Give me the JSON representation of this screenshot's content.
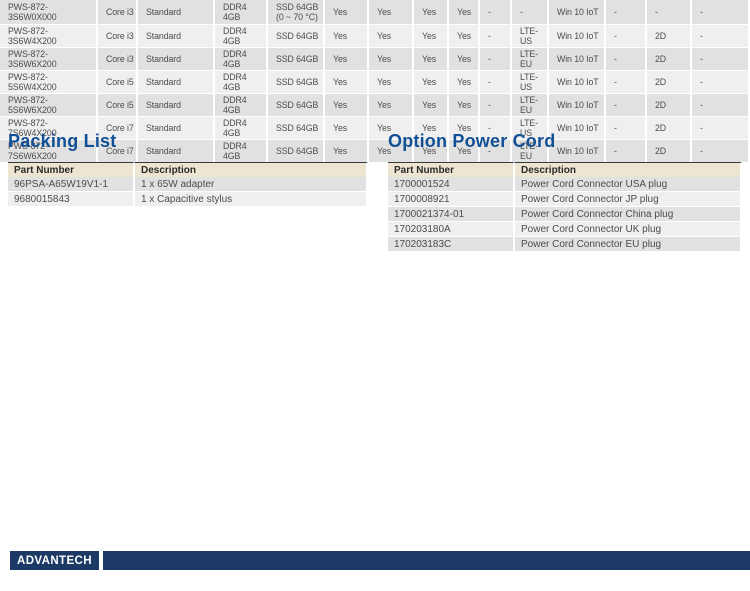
{
  "colors": {
    "accent_blue": "#114f96",
    "navy": "#1d3a67",
    "header_beige": "#ede4d2",
    "row_dark": "#e1e1e1",
    "row_light": "#efefef"
  },
  "spec_table": {
    "rows": [
      [
        "PWS-872-3S6W0X000",
        "Core i3",
        "Standard",
        "DDR4 4GB",
        "SSD 64GB\n(0 ~ 70 °C)",
        "Yes",
        "Yes",
        "Yes",
        "Yes",
        "-",
        "-",
        "Win 10 IoT",
        "-",
        "-",
        "-"
      ],
      [
        "PWS-872-3S6W4X200",
        "Core i3",
        "Standard",
        "DDR4 4GB",
        "SSD 64GB",
        "Yes",
        "Yes",
        "Yes",
        "Yes",
        "-",
        "LTE-US",
        "Win 10 IoT",
        "-",
        "2D",
        "-"
      ],
      [
        "PWS-872-3S6W6X200",
        "Core i3",
        "Standard",
        "DDR4 4GB",
        "SSD 64GB",
        "Yes",
        "Yes",
        "Yes",
        "Yes",
        "-",
        "LTE-EU",
        "Win 10 IoT",
        "-",
        "2D",
        "-"
      ],
      [
        "PWS-872-5S6W4X200",
        "Core i5",
        "Standard",
        "DDR4 4GB",
        "SSD 64GB",
        "Yes",
        "Yes",
        "Yes",
        "Yes",
        "-",
        "LTE-US",
        "Win 10 IoT",
        "-",
        "2D",
        "-"
      ],
      [
        "PWS-872-5S6W6X200",
        "Core i5",
        "Standard",
        "DDR4 4GB",
        "SSD 64GB",
        "Yes",
        "Yes",
        "Yes",
        "Yes",
        "-",
        "LTE-EU",
        "Win 10 IoT",
        "-",
        "2D",
        "-"
      ],
      [
        "PWS-872-7S6W4X200",
        "Core i7",
        "Standard",
        "DDR4 4GB",
        "SSD 64GB",
        "Yes",
        "Yes",
        "Yes",
        "Yes",
        "-",
        "LTE-US",
        "Win 10 IoT",
        "-",
        "2D",
        "-"
      ],
      [
        "PWS-872-7S6W6X200",
        "Core i7",
        "Standard",
        "DDR4 4GB",
        "SSD 64GB",
        "Yes",
        "Yes",
        "Yes",
        "Yes",
        "-",
        "LTE-EU",
        "Win 10 IoT",
        "-",
        "2D",
        "-"
      ]
    ]
  },
  "packing_list": {
    "title": "Packing List",
    "headers": [
      "Part Number",
      "Description"
    ],
    "rows": [
      [
        "96PSA-A65W19V1-1",
        "1 x 65W adapter"
      ],
      [
        "9680015843",
        "1 x Capacitive stylus"
      ]
    ]
  },
  "option_power_cord": {
    "title": "Option Power Cord",
    "headers": [
      "Part Number",
      "Description"
    ],
    "rows": [
      [
        "1700001524",
        "Power Cord Connector USA plug"
      ],
      [
        "1700008921",
        "Power Cord Connector JP plug"
      ],
      [
        "1700021374-01",
        "Power Cord Connector China plug"
      ],
      [
        "170203180A",
        "Power Cord Connector UK plug"
      ],
      [
        "170203183C",
        "Power Cord Connector EU plug"
      ]
    ]
  },
  "footer": {
    "logo_text": "ADVANTECH"
  }
}
